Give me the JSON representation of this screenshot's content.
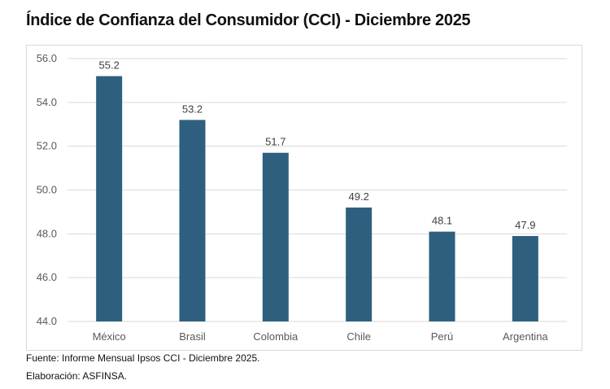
{
  "chart_data": {
    "type": "bar",
    "title": "Índice de Confianza del Consumidor (CCI) - Diciembre 2025",
    "categories": [
      "México",
      "Brasil",
      "Colombia",
      "Chile",
      "Perú",
      "Argentina"
    ],
    "values": [
      55.2,
      53.2,
      51.7,
      49.2,
      48.1,
      47.9
    ],
    "data_labels": [
      "55.2",
      "53.2",
      "51.7",
      "49.2",
      "48.1",
      "47.9"
    ],
    "ylim": [
      44,
      56
    ],
    "yticks": [
      "44.0",
      "46.0",
      "48.0",
      "50.0",
      "52.0",
      "54.0",
      "56.0"
    ],
    "xlabel": "",
    "ylabel": "",
    "grid": true,
    "legend": "none",
    "bar_color": "#2e5f7f"
  },
  "footer": {
    "source": "Fuente: Informe Mensual Ipsos CCI - Diciembre 2025.",
    "credit": "Elaboración: ASFINSA."
  }
}
